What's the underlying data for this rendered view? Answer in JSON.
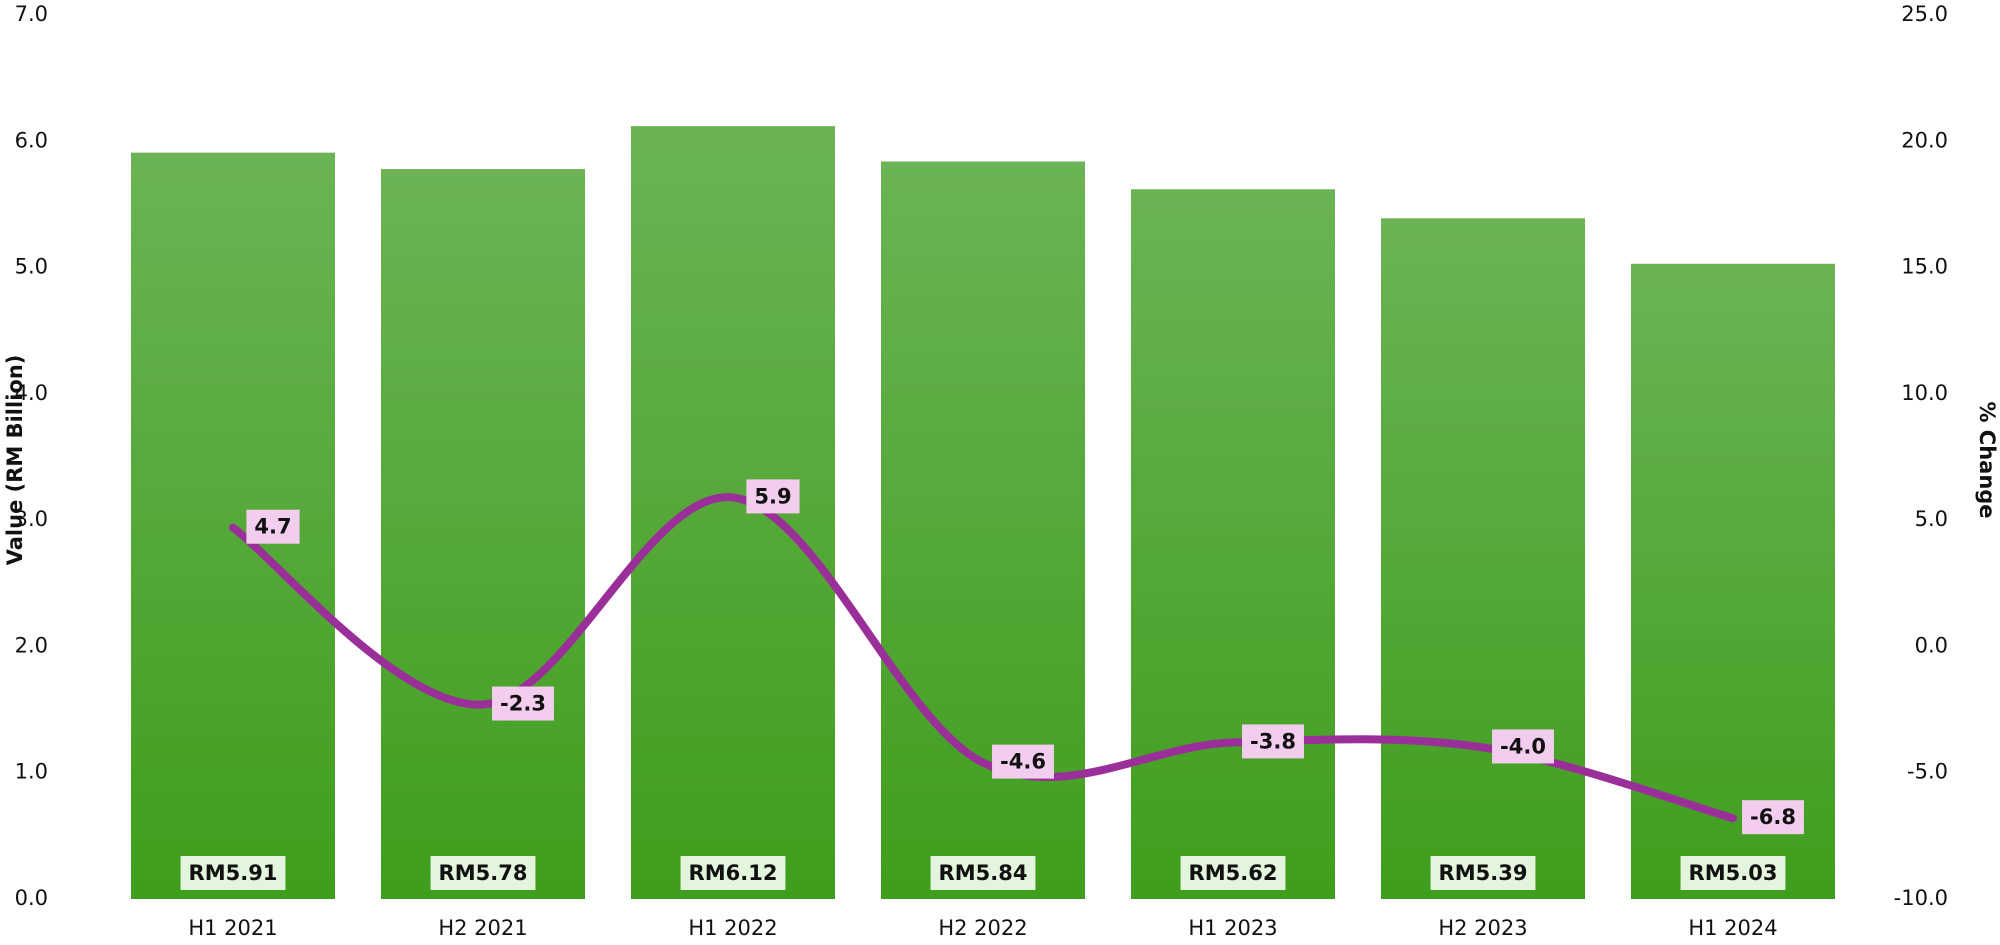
{
  "chart_data": {
    "type": "bar",
    "categories": [
      "H1 2021",
      "H2 2021",
      "H1 2022",
      "H2 2022",
      "H1 2023",
      "H2 2023",
      "H1 2024"
    ],
    "y_label": "Value (RM Billion)",
    "y2_label": "% Change",
    "ylim": [
      0,
      7
    ],
    "yticks": [
      {
        "value": 0,
        "label": "0.0"
      },
      {
        "value": 1,
        "label": "1.0"
      },
      {
        "value": 2,
        "label": "2.0"
      },
      {
        "value": 3,
        "label": "3.0"
      },
      {
        "value": 4,
        "label": "4.0"
      },
      {
        "value": 5,
        "label": "5.0"
      },
      {
        "value": 6,
        "label": "6.0"
      },
      {
        "value": 7,
        "label": "7.0"
      }
    ],
    "y2lim": [
      -10,
      25
    ],
    "y2ticks": [
      {
        "value": -10,
        "label": "-10.0"
      },
      {
        "value": -5,
        "label": "-5.0"
      },
      {
        "value": 0,
        "label": "0.0"
      },
      {
        "value": 5,
        "label": "5.0"
      },
      {
        "value": 10,
        "label": "10.0"
      },
      {
        "value": 15,
        "label": "15.0"
      },
      {
        "value": 20,
        "label": "20.0"
      },
      {
        "value": 25,
        "label": "25.0"
      }
    ],
    "series": [
      {
        "type": "bar",
        "color": "#4ba52a",
        "values": [
          5.91,
          5.78,
          6.12,
          5.84,
          5.62,
          5.39,
          5.03
        ],
        "value_labels": [
          "RM5.91",
          "RM5.78",
          "RM6.12",
          "RM5.84",
          "RM5.62",
          "RM5.39",
          "RM5.03"
        ]
      },
      {
        "type": "line",
        "axis": "y2",
        "color": "#9b2f9a",
        "values": [
          4.7,
          -2.3,
          5.9,
          -4.6,
          -3.8,
          -4.0,
          -6.8
        ],
        "value_labels": [
          "4.7",
          "-2.3",
          "5.9",
          "-4.6",
          "-3.8",
          "-4.0",
          "-6.8"
        ]
      }
    ]
  }
}
